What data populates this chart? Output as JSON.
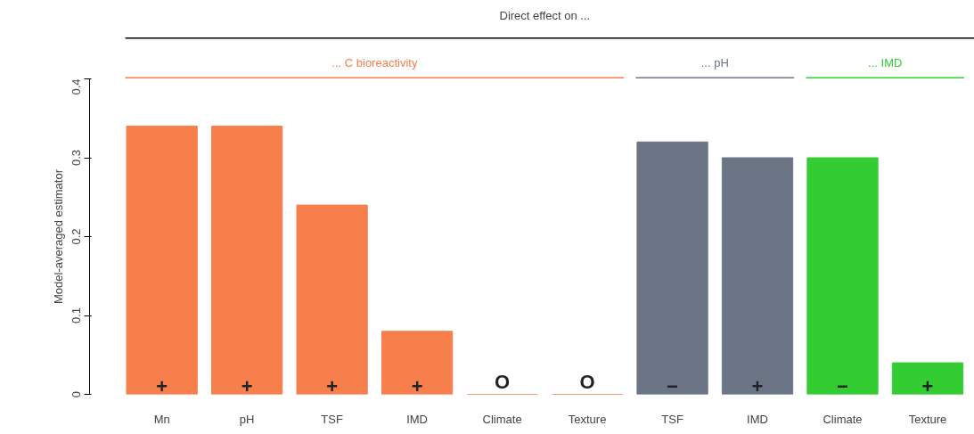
{
  "chart_data": {
    "type": "bar",
    "ylabel": "Model-averaged estimator",
    "categories": [
      "Mn",
      "pH",
      "TSF",
      "IMD",
      "Climate",
      "Texture",
      "TSF",
      "IMD",
      "Climate",
      "Texture"
    ],
    "values": [
      0.34,
      0.34,
      0.24,
      0.08,
      0,
      0,
      0.32,
      0.3,
      0.3,
      0.04
    ],
    "colors": [
      "#f77f4c",
      "#f77f4c",
      "#f77f4c",
      "#f77f4c",
      "#f77f4c",
      "#f77f4c",
      "#6b7585",
      "#6b7585",
      "#33cc33",
      "#33cc33"
    ],
    "value_labels": [
      "+",
      "+",
      "+",
      "+",
      "O",
      "O",
      "−",
      "+",
      "−",
      "+"
    ],
    "annotations": [
      "Direct effect on ...",
      "... C bioreactivity",
      "... pH",
      "... IMD"
    ],
    "ylim": [
      0,
      0.4
    ],
    "yticks": [
      0,
      0.1,
      0.2,
      0.3,
      0.4
    ],
    "grid": false
  }
}
